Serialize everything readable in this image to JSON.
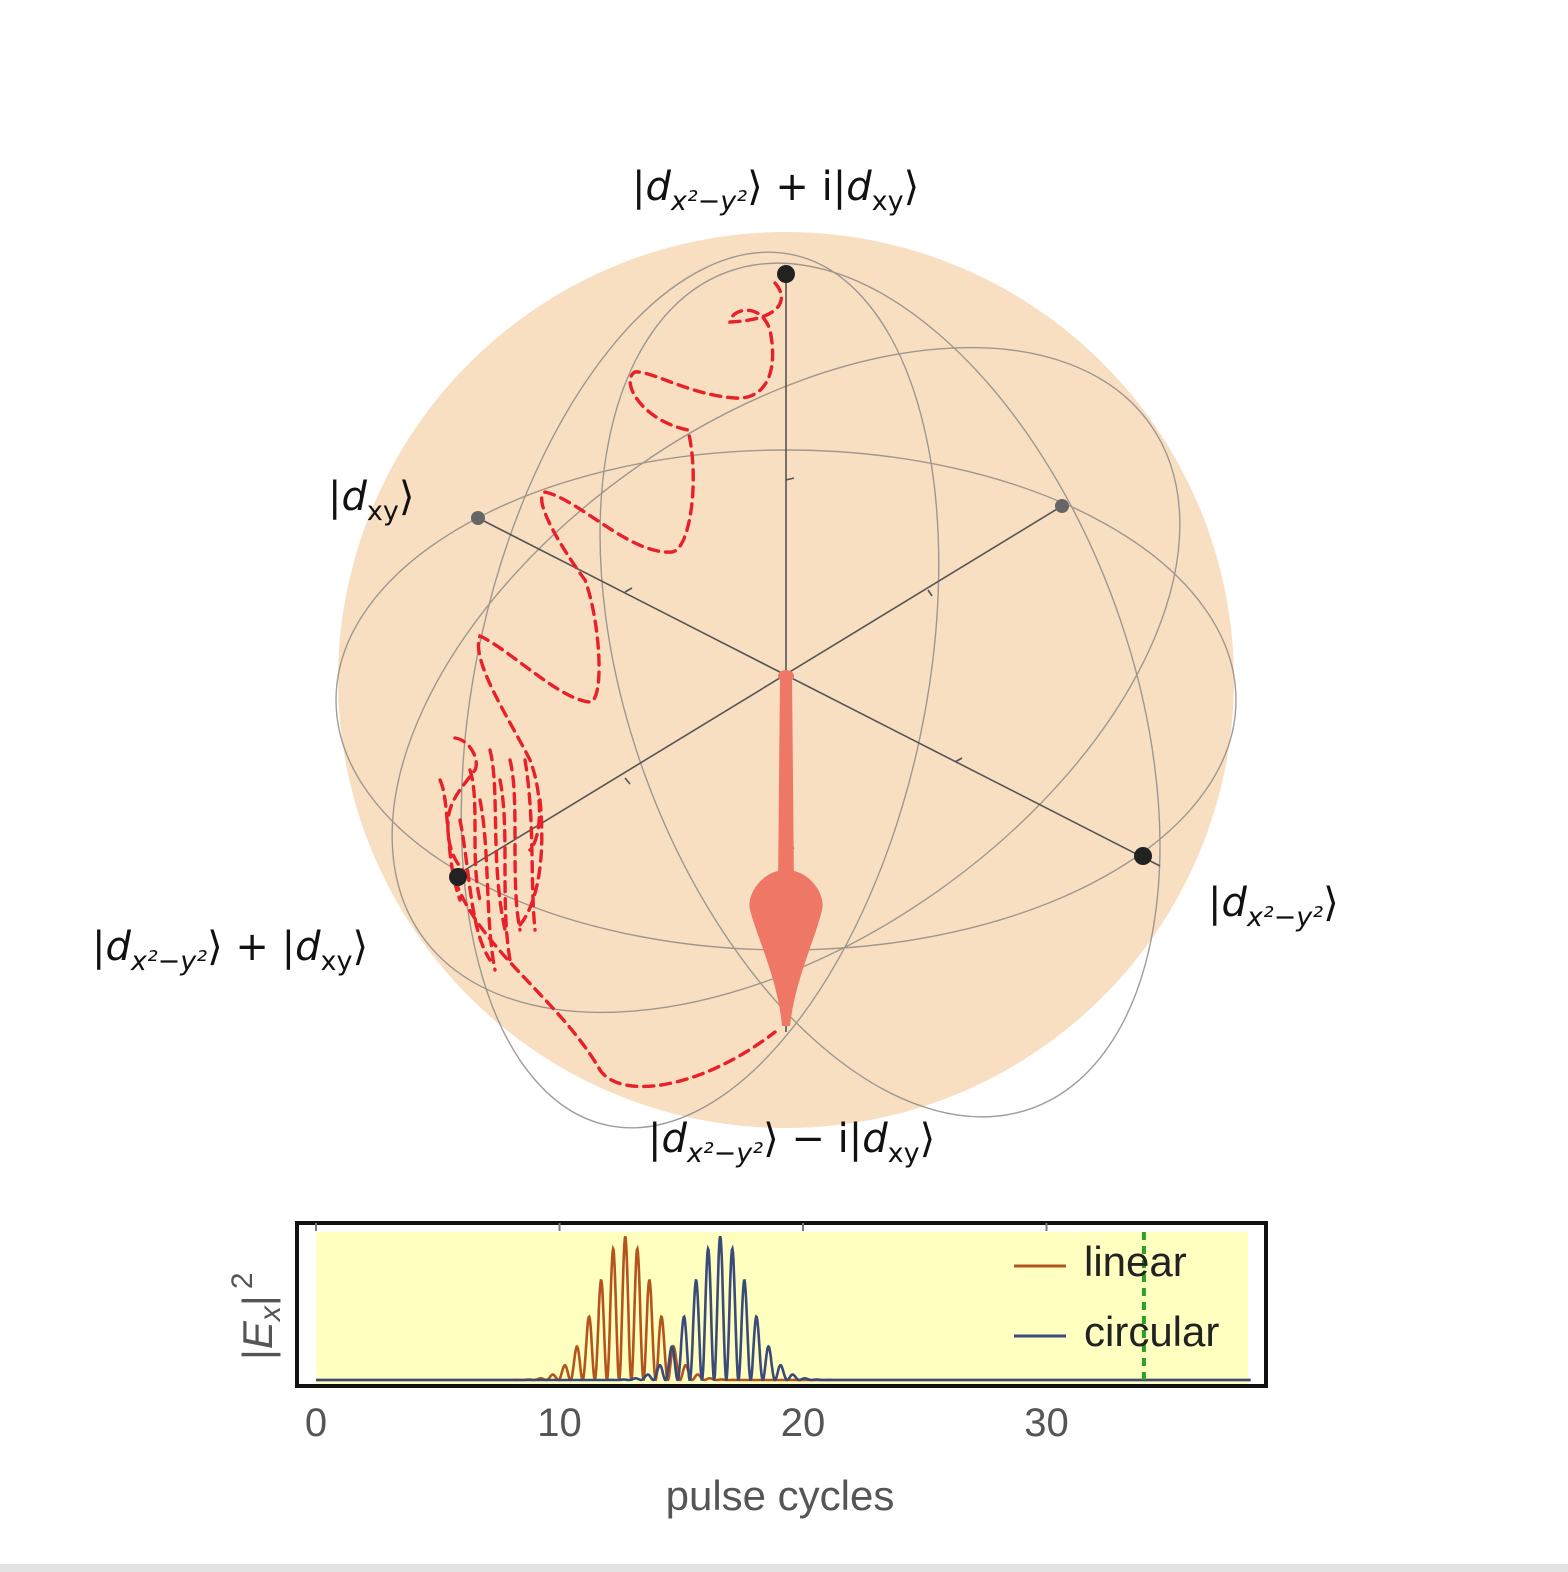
{
  "bloch_sphere": {
    "labels": {
      "top": {
        "a": "|",
        "b": "d",
        "c": "x²−y²",
        "d": "⟩ + i|",
        "e": "d",
        "f": "xy",
        "g": "⟩"
      },
      "bottom": {
        "a": "|",
        "b": "d",
        "c": "x²−y²",
        "d": "⟩ − i|",
        "e": "d",
        "f": "xy",
        "g": "⟩"
      },
      "left": {
        "a": "|",
        "b": "d",
        "c": "x²−y²",
        "d": "⟩ + |",
        "e": "d",
        "f": "xy",
        "g": "⟩"
      },
      "right": {
        "a": "|",
        "b": "d",
        "c": "x²−y²",
        "d": "⟩"
      },
      "upper_left": {
        "a": "|",
        "b": "d",
        "c": "xy",
        "d": "⟩"
      }
    },
    "colors": {
      "sphere_fill": "#f8dfc2",
      "wireframe": "#8a8680",
      "axes": "#555555",
      "trajectory": "#e8202a",
      "arrow": "#ee7766",
      "point": "#222222"
    }
  },
  "chart_data": {
    "type": "line",
    "xlabel": "pulse cycles",
    "ylabel": "|E_x|²",
    "ylabel_parts": {
      "a": "|",
      "b": "E",
      "c": "x",
      "d": "|",
      "e": "2"
    },
    "xlim": [
      -0.8,
      38.5
    ],
    "ylim": [
      0,
      1.03
    ],
    "xticks": [
      0,
      10,
      20,
      30
    ],
    "xtick_labels": [
      "0",
      "10",
      "20",
      "30"
    ],
    "grid": false,
    "legend_position": "top-right",
    "background_color": "#ffffc0",
    "series": [
      {
        "name": "linear",
        "color": "#b4541c",
        "center": 12.7,
        "width": 1.65,
        "period": 0.5,
        "amplitude": 1.0
      },
      {
        "name": "circular",
        "color": "#3a4a7a",
        "center": 16.6,
        "width": 1.65,
        "period": 0.5,
        "amplitude": 1.0
      }
    ],
    "marker_line": {
      "x": 34,
      "color": "#2aa02a",
      "style": "dashed"
    }
  }
}
